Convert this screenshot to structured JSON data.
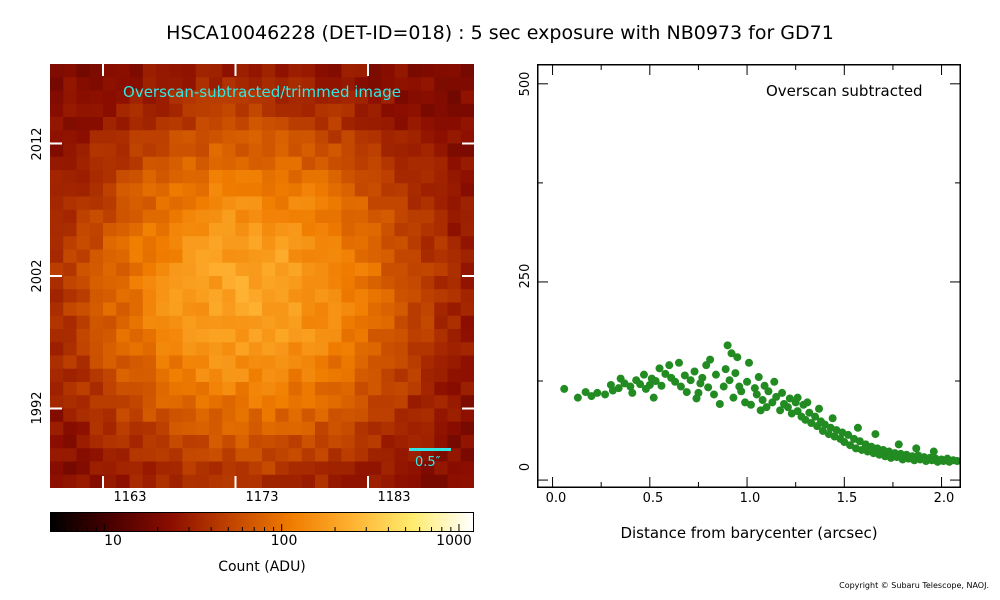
{
  "title": "HSCA10046228 (DET-ID=018) :  5 sec exposure with NB0973 for GD71",
  "copyright": "Copyright © Subaru Telescope, NAOJ.",
  "colors": {
    "scatter_points": "#228b22",
    "image_annotation": "#33e6e6",
    "colormap": [
      "#000000",
      "#4a0000",
      "#8b0e00",
      "#c24500",
      "#f07d00",
      "#ffb232",
      "#ffec6e",
      "#ffffff"
    ]
  },
  "chart_data": [
    {
      "type": "heatmap",
      "caption": "Overscan-subtracted/trimmed image",
      "scale_bar_label": "0.5″",
      "x_ticks": [
        "1163",
        "1173",
        "1183"
      ],
      "y_ticks": [
        "2012",
        "2002",
        "1992"
      ],
      "x_tick_values": [
        1163,
        1173,
        1183
      ],
      "y_tick_values": [
        2012,
        2002,
        1992
      ],
      "x_range": [
        1159,
        1191
      ],
      "y_range": [
        1986,
        2018
      ],
      "source_center": [
        1174,
        2001
      ],
      "peak_counts": 210,
      "background_counts": 20,
      "colormap": "afmhot",
      "colorbar": {
        "title": "Count (ADU)",
        "scale": "log",
        "range": [
          5,
          1200
        ],
        "tick_labels": [
          "10",
          "100",
          "1000"
        ],
        "tick_values": [
          10,
          100,
          1000
        ]
      }
    },
    {
      "type": "scatter",
      "annotation": "Overscan subtracted",
      "xlabel": "Distance from barycenter (arcsec)",
      "ylabel": "",
      "xlim": [
        -0.08,
        2.1
      ],
      "ylim": [
        -10,
        525
      ],
      "x_ticks": [
        "0.0",
        "0.5",
        "1.0",
        "1.5",
        "2.0"
      ],
      "x_tick_values": [
        0,
        0.5,
        1.0,
        1.5,
        2.0
      ],
      "y_ticks": [
        "0",
        "250",
        "500"
      ],
      "y_tick_values": [
        0,
        250,
        500
      ],
      "series": [
        {
          "points": [
            [
              0.06,
              115
            ],
            [
              0.13,
              104
            ],
            [
              0.17,
              111
            ],
            [
              0.2,
              106
            ],
            [
              0.23,
              110
            ],
            [
              0.27,
              108
            ],
            [
              0.3,
              120
            ],
            [
              0.31,
              113
            ],
            [
              0.34,
              116
            ],
            [
              0.37,
              122
            ],
            [
              0.4,
              118
            ],
            [
              0.41,
              110
            ],
            [
              0.43,
              126
            ],
            [
              0.45,
              121
            ],
            [
              0.47,
              133
            ],
            [
              0.48,
              115
            ],
            [
              0.5,
              120
            ],
            [
              0.51,
              128
            ],
            [
              0.53,
              125
            ],
            [
              0.55,
              141
            ],
            [
              0.56,
              119
            ],
            [
              0.58,
              134
            ],
            [
              0.6,
              145
            ],
            [
              0.61,
              129
            ],
            [
              0.63,
              124
            ],
            [
              0.65,
              148
            ],
            [
              0.66,
              118
            ],
            [
              0.68,
              132
            ],
            [
              0.69,
              111
            ],
            [
              0.71,
              126
            ],
            [
              0.73,
              137
            ],
            [
              0.74,
              103
            ],
            [
              0.76,
              122
            ],
            [
              0.77,
              129
            ],
            [
              0.79,
              145
            ],
            [
              0.8,
              117
            ],
            [
              0.81,
              152
            ],
            [
              0.83,
              108
            ],
            [
              0.84,
              133
            ],
            [
              0.86,
              96
            ],
            [
              0.88,
              118
            ],
            [
              0.89,
              140
            ],
            [
              0.9,
              170
            ],
            [
              0.91,
              126
            ],
            [
              0.93,
              104
            ],
            [
              0.94,
              135
            ],
            [
              0.95,
              155
            ],
            [
              0.96,
              118
            ],
            [
              0.97,
              112
            ],
            [
              0.99,
              98
            ],
            [
              1.0,
              124
            ],
            [
              1.01,
              148
            ],
            [
              1.02,
              95
            ],
            [
              1.04,
              116
            ],
            [
              1.05,
              108
            ],
            [
              1.06,
              130
            ],
            [
              1.08,
              101
            ],
            [
              1.09,
              119
            ],
            [
              1.1,
              92
            ],
            [
              1.11,
              112
            ],
            [
              1.13,
              98
            ],
            [
              1.14,
              124
            ],
            [
              1.15,
              105
            ],
            [
              1.17,
              88
            ],
            [
              1.18,
              110
            ],
            [
              1.19,
              96
            ],
            [
              1.21,
              92
            ],
            [
              1.22,
              103
            ],
            [
              1.23,
              84
            ],
            [
              1.25,
              98
            ],
            [
              1.26,
              87
            ],
            [
              1.28,
              80
            ],
            [
              1.29,
              95
            ],
            [
              1.3,
              76
            ],
            [
              1.32,
              85
            ],
            [
              1.33,
              72
            ],
            [
              1.35,
              80
            ],
            [
              1.36,
              68
            ],
            [
              1.38,
              74
            ],
            [
              1.39,
              62
            ],
            [
              1.4,
              70
            ],
            [
              1.42,
              58
            ],
            [
              1.43,
              66
            ],
            [
              1.45,
              55
            ],
            [
              1.46,
              63
            ],
            [
              1.48,
              52
            ],
            [
              1.49,
              60
            ],
            [
              1.5,
              48
            ],
            [
              1.52,
              57
            ],
            [
              1.53,
              44
            ],
            [
              1.55,
              52
            ],
            [
              1.56,
              40
            ],
            [
              1.58,
              49
            ],
            [
              1.59,
              38
            ],
            [
              1.61,
              45
            ],
            [
              1.62,
              36
            ],
            [
              1.64,
              42
            ],
            [
              1.65,
              34
            ],
            [
              1.67,
              40
            ],
            [
              1.68,
              32
            ],
            [
              1.7,
              38
            ],
            [
              1.71,
              30
            ],
            [
              1.73,
              36
            ],
            [
              1.74,
              28
            ],
            [
              1.76,
              34
            ],
            [
              1.77,
              29
            ],
            [
              1.79,
              33
            ],
            [
              1.8,
              26
            ],
            [
              1.82,
              32
            ],
            [
              1.83,
              27
            ],
            [
              1.85,
              30
            ],
            [
              1.86,
              25
            ],
            [
              1.88,
              31
            ],
            [
              1.89,
              26
            ],
            [
              1.91,
              29
            ],
            [
              1.92,
              24
            ],
            [
              1.94,
              28
            ],
            [
              1.95,
              25
            ],
            [
              1.97,
              27
            ],
            [
              1.98,
              23
            ],
            [
              2.0,
              26
            ],
            [
              2.01,
              24
            ],
            [
              2.03,
              27
            ],
            [
              2.04,
              23
            ],
            [
              2.06,
              25
            ],
            [
              2.08,
              24
            ],
            [
              1.26,
              104
            ],
            [
              1.31,
              98
            ],
            [
              1.37,
              90
            ],
            [
              1.44,
              78
            ],
            [
              1.57,
              66
            ],
            [
              1.66,
              58
            ],
            [
              1.78,
              45
            ],
            [
              1.87,
              40
            ],
            [
              1.96,
              36
            ],
            [
              0.52,
              104
            ],
            [
              0.35,
              128
            ],
            [
              0.92,
              160
            ],
            [
              0.75,
              110
            ],
            [
              1.07,
              88
            ]
          ]
        }
      ]
    }
  ]
}
